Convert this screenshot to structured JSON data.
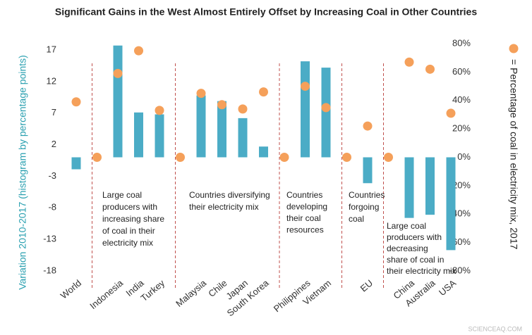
{
  "chart_data": {
    "type": "bar",
    "title": "Significant Gains in the West Almost Entirely Offset by Increasing Coal in Other Countries",
    "y_label": "Variation 2010-2017 (histogram by percentage points)",
    "y2_label": "= Percentage of coal in electricity mix, 2017",
    "categories": [
      "World",
      null,
      "Indonesia",
      "India",
      "Turkey",
      null,
      "Malaysia",
      "Chile",
      "Japan",
      "South Korea",
      null,
      "Philippines",
      "Vietnam",
      null,
      "EU",
      null,
      "China",
      "Australia",
      "USA"
    ],
    "series": [
      {
        "type": "bar",
        "color": "#4bacc6",
        "values": [
          -1.9,
          null,
          17.7,
          7.1,
          6.8,
          null,
          9.8,
          8.9,
          6.2,
          1.7,
          null,
          15.2,
          14.2,
          null,
          -4.1,
          null,
          -9.6,
          -9.1,
          -14.7
        ]
      },
      {
        "type": "scatter",
        "name": "= Percentage of coal in electricity mix, 2017",
        "axis": "y2",
        "color": "#f5a05a",
        "values": [
          39,
          0,
          59,
          75,
          33,
          0,
          45,
          37,
          34,
          46,
          0,
          50,
          35,
          0,
          22,
          0,
          67,
          62,
          31
        ]
      }
    ],
    "ylim": [
      -18,
      18
    ],
    "yticks": [
      17,
      12,
      7,
      2,
      -3,
      -8,
      -13,
      -18
    ],
    "y2lim": [
      -80,
      80
    ],
    "y2ticks": [
      {
        "value": 80,
        "label": "80%"
      },
      {
        "value": 60,
        "label": "60%"
      },
      {
        "value": 40,
        "label": "40%"
      },
      {
        "value": 20,
        "label": "20%"
      },
      {
        "value": 0,
        "label": "0%"
      },
      {
        "value": -20,
        "label": "-20%"
      },
      {
        "value": -40,
        "label": "-40%"
      },
      {
        "value": -60,
        "label": "-60%"
      },
      {
        "value": -80,
        "label": "-80%"
      }
    ],
    "annotations": [
      [
        "Large coal",
        "producers with",
        "increasing share",
        "of coal in their",
        "electricity mix"
      ],
      [
        "Countries diversifying",
        "their electricity mix"
      ],
      [
        "Countries",
        "developing",
        "their coal",
        "resources"
      ],
      [
        "Countries",
        "forgoing",
        "coal"
      ],
      [
        "Large coal",
        "producers with",
        "decreasing",
        "share of coal in",
        "their electricity mix"
      ]
    ],
    "watermark": "SCIENCEAQ.COM"
  }
}
